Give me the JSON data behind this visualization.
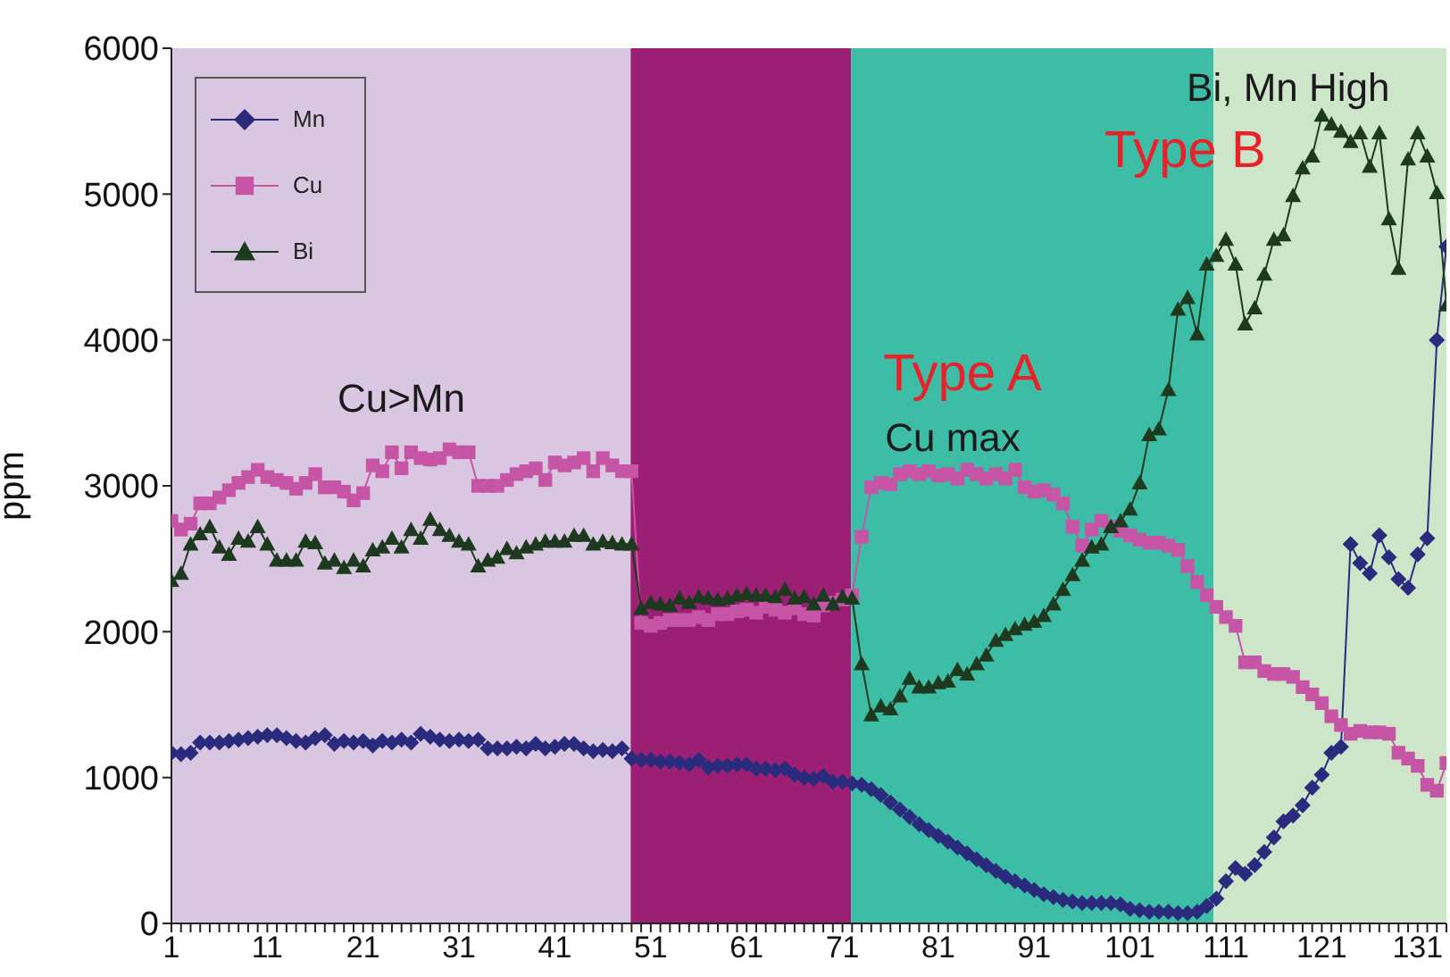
{
  "chart_data": {
    "type": "line",
    "ylabel": "ppm",
    "legend": "top left",
    "x": [
      1,
      2,
      3,
      4,
      5,
      6,
      7,
      8,
      9,
      10,
      11,
      12,
      13,
      14,
      15,
      16,
      17,
      18,
      19,
      20,
      21,
      22,
      23,
      24,
      25,
      26,
      27,
      28,
      29,
      30,
      31,
      32,
      33,
      34,
      35,
      36,
      37,
      38,
      39,
      40,
      41,
      42,
      43,
      44,
      45,
      46,
      47,
      48,
      49,
      50,
      51,
      52,
      53,
      54,
      55,
      56,
      57,
      58,
      59,
      60,
      61,
      62,
      63,
      64,
      65,
      66,
      67,
      68,
      69,
      70,
      71,
      72,
      73,
      74,
      75,
      76,
      77,
      78,
      79,
      80,
      81,
      82,
      83,
      84,
      85,
      86,
      87,
      88,
      89,
      90,
      91,
      92,
      93,
      94,
      95,
      96,
      97,
      98,
      99,
      100,
      101,
      102,
      103,
      104,
      105,
      106,
      107,
      108,
      109,
      110,
      111,
      112,
      113,
      114,
      115,
      116,
      117,
      118,
      119,
      120,
      121,
      122,
      123,
      124,
      125,
      126,
      127,
      128,
      129,
      130,
      131,
      132,
      133,
      134
    ],
    "series": [
      {
        "name": "Mn",
        "color": "#2b2b7e",
        "marker": "diamond",
        "values": [
          1170,
          1160,
          1170,
          1240,
          1240,
          1240,
          1250,
          1260,
          1270,
          1280,
          1290,
          1290,
          1270,
          1250,
          1240,
          1270,
          1290,
          1230,
          1250,
          1240,
          1250,
          1220,
          1250,
          1240,
          1260,
          1240,
          1300,
          1280,
          1260,
          1250,
          1260,
          1250,
          1260,
          1200,
          1200,
          1200,
          1210,
          1200,
          1230,
          1200,
          1210,
          1230,
          1230,
          1200,
          1180,
          1190,
          1180,
          1200,
          1130,
          1120,
          1120,
          1110,
          1110,
          1100,
          1090,
          1120,
          1070,
          1080,
          1080,
          1090,
          1090,
          1060,
          1060,
          1050,
          1060,
          1020,
          1000,
          990,
          1010,
          970,
          970,
          960,
          950,
          920,
          880,
          830,
          780,
          730,
          680,
          640,
          600,
          560,
          520,
          480,
          440,
          400,
          360,
          320,
          290,
          260,
          230,
          200,
          180,
          160,
          150,
          140,
          140,
          140,
          140,
          130,
          100,
          90,
          80,
          80,
          80,
          70,
          70,
          80,
          120,
          170,
          290,
          380,
          340,
          400,
          490,
          590,
          700,
          740,
          810,
          930,
          1020,
          1170,
          1210,
          2600,
          2470,
          2400,
          2660,
          2510,
          2360,
          2300,
          2530,
          2640,
          4000,
          4640
        ]
      },
      {
        "name": "Cu",
        "color": "#c655a6",
        "marker": "square",
        "values": [
          2760,
          2700,
          2740,
          2880,
          2880,
          2920,
          2970,
          3020,
          3060,
          3110,
          3060,
          3040,
          3020,
          2980,
          3020,
          3080,
          2990,
          2990,
          2960,
          2900,
          2950,
          3140,
          3100,
          3230,
          3120,
          3230,
          3190,
          3180,
          3190,
          3250,
          3230,
          3230,
          3000,
          3000,
          3000,
          3040,
          3080,
          3100,
          3120,
          3040,
          3160,
          3140,
          3160,
          3190,
          3100,
          3190,
          3140,
          3100,
          3100,
          2060,
          2040,
          2060,
          2080,
          2080,
          2080,
          2100,
          2080,
          2120,
          2120,
          2140,
          2150,
          2130,
          2170,
          2150,
          2130,
          2160,
          2120,
          2110,
          2180,
          2200,
          2220,
          2250,
          2650,
          2990,
          3020,
          3010,
          3080,
          3100,
          3080,
          3100,
          3070,
          3080,
          3050,
          3110,
          3080,
          3050,
          3080,
          3050,
          3110,
          2990,
          2960,
          2970,
          2940,
          2880,
          2720,
          2590,
          2700,
          2760,
          2720,
          2690,
          2660,
          2630,
          2610,
          2610,
          2590,
          2560,
          2450,
          2340,
          2250,
          2170,
          2100,
          2040,
          1790,
          1790,
          1730,
          1710,
          1710,
          1690,
          1620,
          1570,
          1510,
          1420,
          1360,
          1300,
          1320,
          1310,
          1310,
          1300,
          1170,
          1130,
          1080,
          950,
          910,
          1100
        ]
      },
      {
        "name": "Bi",
        "color": "#1d3a1f",
        "marker": "triangle",
        "values": [
          2350,
          2400,
          2600,
          2670,
          2720,
          2580,
          2530,
          2640,
          2620,
          2720,
          2600,
          2490,
          2490,
          2490,
          2620,
          2610,
          2470,
          2490,
          2440,
          2490,
          2450,
          2560,
          2580,
          2640,
          2580,
          2700,
          2640,
          2770,
          2700,
          2660,
          2620,
          2600,
          2450,
          2490,
          2510,
          2570,
          2540,
          2580,
          2600,
          2620,
          2620,
          2620,
          2660,
          2660,
          2600,
          2620,
          2610,
          2600,
          2600,
          2160,
          2200,
          2190,
          2180,
          2230,
          2200,
          2240,
          2230,
          2220,
          2230,
          2250,
          2260,
          2250,
          2250,
          2240,
          2290,
          2230,
          2240,
          2190,
          2250,
          2190,
          2240,
          2230,
          1780,
          1430,
          1490,
          1470,
          1560,
          1680,
          1620,
          1620,
          1650,
          1660,
          1740,
          1710,
          1780,
          1840,
          1940,
          1980,
          2020,
          2050,
          2070,
          2110,
          2190,
          2290,
          2390,
          2490,
          2580,
          2600,
          2720,
          2760,
          2840,
          3020,
          3350,
          3390,
          3660,
          4210,
          4290,
          4040,
          4520,
          4580,
          4690,
          4520,
          4110,
          4220,
          4450,
          4690,
          4720,
          4990,
          5180,
          5260,
          5540,
          5480,
          5430,
          5360,
          5420,
          5190,
          5420,
          4830,
          4490,
          5240,
          5420,
          5260,
          5010,
          4240
        ]
      }
    ],
    "xlim": [
      1,
      134
    ],
    "xticks": [
      1,
      {
        "value": 2,
        "label": null
      },
      {
        "value": 3,
        "label": null
      },
      {
        "value": 4,
        "label": null
      },
      {
        "value": 5,
        "label": null
      },
      {
        "value": 6,
        "label": null
      },
      {
        "value": 7,
        "label": null
      },
      {
        "value": 8,
        "label": null
      },
      {
        "value": 9,
        "label": null
      },
      {
        "value": 10,
        "label": null
      },
      11,
      {
        "value": 12,
        "label": null
      },
      {
        "value": 13,
        "label": null
      },
      {
        "value": 14,
        "label": null
      },
      {
        "value": 15,
        "label": null
      },
      {
        "value": 16,
        "label": null
      },
      {
        "value": 17,
        "label": null
      },
      {
        "value": 18,
        "label": null
      },
      {
        "value": 19,
        "label": null
      },
      {
        "value": 20,
        "label": null
      },
      21,
      {
        "value": 22,
        "label": null
      },
      {
        "value": 23,
        "label": null
      },
      {
        "value": 24,
        "label": null
      },
      {
        "value": 25,
        "label": null
      },
      {
        "value": 26,
        "label": null
      },
      {
        "value": 27,
        "label": null
      },
      {
        "value": 28,
        "label": null
      },
      {
        "value": 29,
        "label": null
      },
      {
        "value": 30,
        "label": null
      },
      31,
      {
        "value": 32,
        "label": null
      },
      {
        "value": 33,
        "label": null
      },
      {
        "value": 34,
        "label": null
      },
      {
        "value": 35,
        "label": null
      },
      {
        "value": 36,
        "label": null
      },
      {
        "value": 37,
        "label": null
      },
      {
        "value": 38,
        "label": null
      },
      {
        "value": 39,
        "label": null
      },
      {
        "value": 40,
        "label": null
      },
      41,
      {
        "value": 42,
        "label": null
      },
      {
        "value": 43,
        "label": null
      },
      {
        "value": 44,
        "label": null
      },
      {
        "value": 45,
        "label": null
      },
      {
        "value": 46,
        "label": null
      },
      {
        "value": 47,
        "label": null
      },
      {
        "value": 48,
        "label": null
      },
      {
        "value": 49,
        "label": null
      },
      {
        "value": 50,
        "label": null
      },
      51,
      {
        "value": 52,
        "label": null
      },
      {
        "value": 53,
        "label": null
      },
      {
        "value": 54,
        "label": null
      },
      {
        "value": 55,
        "label": null
      },
      {
        "value": 56,
        "label": null
      },
      {
        "value": 57,
        "label": null
      },
      {
        "value": 58,
        "label": null
      },
      {
        "value": 59,
        "label": null
      },
      {
        "value": 60,
        "label": null
      },
      61,
      {
        "value": 62,
        "label": null
      },
      {
        "value": 63,
        "label": null
      },
      {
        "value": 64,
        "label": null
      },
      {
        "value": 65,
        "label": null
      },
      {
        "value": 66,
        "label": null
      },
      {
        "value": 67,
        "label": null
      },
      {
        "value": 68,
        "label": null
      },
      {
        "value": 69,
        "label": null
      },
      {
        "value": 70,
        "label": null
      },
      71,
      {
        "value": 72,
        "label": null
      },
      {
        "value": 73,
        "label": null
      },
      {
        "value": 74,
        "label": null
      },
      {
        "value": 75,
        "label": null
      },
      {
        "value": 76,
        "label": null
      },
      {
        "value": 77,
        "label": null
      },
      {
        "value": 78,
        "label": null
      },
      {
        "value": 79,
        "label": null
      },
      {
        "value": 80,
        "label": null
      },
      81,
      {
        "value": 82,
        "label": null
      },
      {
        "value": 83,
        "label": null
      },
      {
        "value": 84,
        "label": null
      },
      {
        "value": 85,
        "label": null
      },
      {
        "value": 86,
        "label": null
      },
      {
        "value": 87,
        "label": null
      },
      {
        "value": 88,
        "label": null
      },
      {
        "value": 89,
        "label": null
      },
      {
        "value": 90,
        "label": null
      },
      91,
      {
        "value": 92,
        "label": null
      },
      {
        "value": 93,
        "label": null
      },
      {
        "value": 94,
        "label": null
      },
      {
        "value": 95,
        "label": null
      },
      {
        "value": 96,
        "label": null
      },
      {
        "value": 97,
        "label": null
      },
      {
        "value": 98,
        "label": null
      },
      {
        "value": 99,
        "label": null
      },
      {
        "value": 100,
        "label": null
      },
      101,
      {
        "value": 102,
        "label": null
      },
      {
        "value": 103,
        "label": null
      },
      {
        "value": 104,
        "label": null
      },
      {
        "value": 105,
        "label": null
      },
      {
        "value": 106,
        "label": null
      },
      {
        "value": 107,
        "label": null
      },
      {
        "value": 108,
        "label": null
      },
      {
        "value": 109,
        "label": null
      },
      {
        "value": 110,
        "label": null
      },
      111,
      {
        "value": 112,
        "label": null
      },
      {
        "value": 113,
        "label": null
      },
      {
        "value": 114,
        "label": null
      },
      {
        "value": 115,
        "label": null
      },
      {
        "value": 116,
        "label": null
      },
      {
        "value": 117,
        "label": null
      },
      {
        "value": 118,
        "label": null
      },
      {
        "value": 119,
        "label": null
      },
      {
        "value": 120,
        "label": null
      },
      121,
      {
        "value": 122,
        "label": null
      },
      {
        "value": 123,
        "label": null
      },
      {
        "value": 124,
        "label": null
      },
      {
        "value": 125,
        "label": null
      },
      {
        "value": 126,
        "label": null
      },
      {
        "value": 127,
        "label": null
      },
      {
        "value": 128,
        "label": null
      },
      {
        "value": 129,
        "label": null
      },
      {
        "value": 130,
        "label": null
      },
      131,
      {
        "value": 132,
        "label": null
      },
      {
        "value": 133,
        "label": null
      },
      {
        "value": 134,
        "label": null
      }
    ],
    "ylim": [
      0,
      6000
    ],
    "yticks": [
      0,
      1000,
      2000,
      3000,
      4000,
      5000,
      6000
    ],
    "bands": [
      {
        "axis": "x",
        "from": 1,
        "to": 48.9,
        "label": "Cu>Mn",
        "color": "#d9c7e1"
      },
      {
        "axis": "x",
        "from": 48.9,
        "to": 71.9,
        "color": "#9b1f72"
      },
      {
        "axis": "x",
        "from": 71.9,
        "to": 109.7,
        "label": "Type A\nCu max",
        "color": "#3dbca6"
      },
      {
        "axis": "x",
        "from": 109.7,
        "to": 134,
        "label": "Bi, Mn High\nType B",
        "color": "#cde6ca"
      }
    ]
  }
}
